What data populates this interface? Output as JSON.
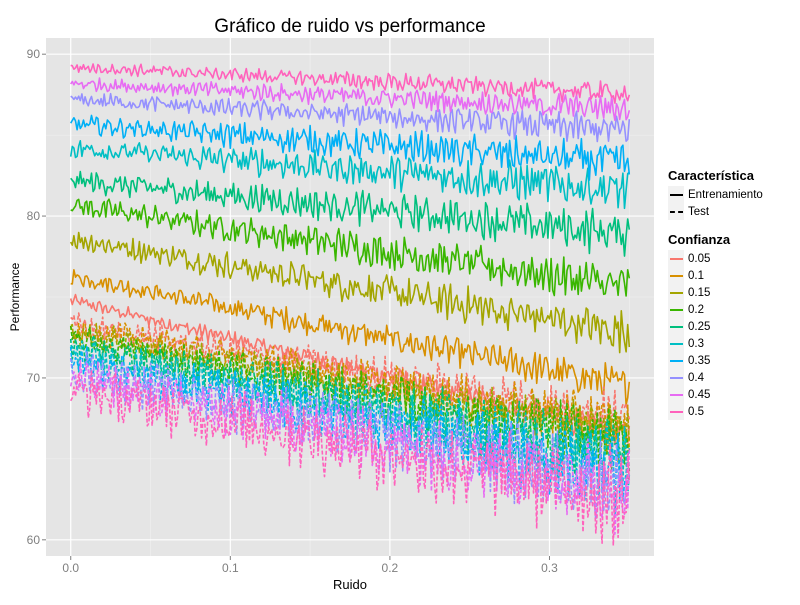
{
  "chart_data": {
    "type": "line",
    "title": "Gráfico de ruido vs performance",
    "xlabel": "Ruido",
    "ylabel": "Performance",
    "xlim": [
      -0.0155,
      0.3655
    ],
    "ylim": [
      59,
      91
    ],
    "x_ticks": [
      "0.0",
      "0.1",
      "0.2",
      "0.3"
    ],
    "x_tick_values": [
      0.0,
      0.1,
      0.2,
      0.3
    ],
    "y_ticks": [
      "60",
      "70",
      "80",
      "90"
    ],
    "y_tick_values": [
      60,
      70,
      80,
      90
    ],
    "grid": true,
    "legend_position": "right",
    "x_range": [
      0.0,
      0.35
    ],
    "line_style_legend": {
      "title": "Característica",
      "items": [
        {
          "label": "Entrenamiento",
          "style": "solid"
        },
        {
          "label": "Test",
          "style": "dashed"
        }
      ]
    },
    "color_legend": {
      "title": "Confianza",
      "items": [
        {
          "label": "0.05",
          "color": "#F8766D"
        },
        {
          "label": "0.1",
          "color": "#D89000"
        },
        {
          "label": "0.15",
          "color": "#A3A500"
        },
        {
          "label": "0.2",
          "color": "#39B600"
        },
        {
          "label": "0.25",
          "color": "#00BF7D"
        },
        {
          "label": "0.3",
          "color": "#00BFC4"
        },
        {
          "label": "0.35",
          "color": "#00B0F6"
        },
        {
          "label": "0.4",
          "color": "#9590FF"
        },
        {
          "label": "0.45",
          "color": "#E76BF3"
        },
        {
          "label": "0.5",
          "color": "#FF62BC"
        }
      ]
    },
    "series": [
      {
        "name": "0.05",
        "feature": "Entrenamiento",
        "style": "solid",
        "x": [
          0.0,
          0.35
        ],
        "y": [
          74.8,
          66.5
        ],
        "noise": 0.3
      },
      {
        "name": "0.1",
        "feature": "Entrenamiento",
        "style": "solid",
        "x": [
          0.0,
          0.35
        ],
        "y": [
          76.3,
          69.5
        ],
        "noise": 0.4
      },
      {
        "name": "0.15",
        "feature": "Entrenamiento",
        "style": "solid",
        "x": [
          0.0,
          0.35
        ],
        "y": [
          78.6,
          72.8
        ],
        "noise": 0.5
      },
      {
        "name": "0.2",
        "feature": "Entrenamiento",
        "style": "solid",
        "x": [
          0.0,
          0.35
        ],
        "y": [
          80.7,
          75.6
        ],
        "noise": 0.5
      },
      {
        "name": "0.25",
        "feature": "Entrenamiento",
        "style": "solid",
        "x": [
          0.0,
          0.35
        ],
        "y": [
          82.2,
          78.9
        ],
        "noise": 0.5
      },
      {
        "name": "0.3",
        "feature": "Entrenamiento",
        "style": "solid",
        "x": [
          0.0,
          0.35
        ],
        "y": [
          84.2,
          81.6
        ],
        "noise": 0.5
      },
      {
        "name": "0.35",
        "feature": "Entrenamiento",
        "style": "solid",
        "x": [
          0.0,
          0.35
        ],
        "y": [
          85.7,
          83.3
        ],
        "noise": 0.45
      },
      {
        "name": "0.4",
        "feature": "Entrenamiento",
        "style": "solid",
        "x": [
          0.0,
          0.35
        ],
        "y": [
          87.2,
          85.3
        ],
        "noise": 0.35
      },
      {
        "name": "0.45",
        "feature": "Entrenamiento",
        "style": "solid",
        "x": [
          0.0,
          0.35
        ],
        "y": [
          88.2,
          86.6
        ],
        "noise": 0.3
      },
      {
        "name": "0.5",
        "feature": "Entrenamiento",
        "style": "solid",
        "x": [
          0.0,
          0.35
        ],
        "y": [
          89.2,
          87.6
        ],
        "noise": 0.25
      },
      {
        "name": "0.05",
        "feature": "Test",
        "style": "dashed",
        "x": [
          0.0,
          0.35
        ],
        "y": [
          73.3,
          67.5
        ],
        "noise": 0.6
      },
      {
        "name": "0.1",
        "feature": "Test",
        "style": "dashed",
        "x": [
          0.0,
          0.35
        ],
        "y": [
          73.1,
          67.0
        ],
        "noise": 0.6
      },
      {
        "name": "0.15",
        "feature": "Test",
        "style": "dashed",
        "x": [
          0.0,
          0.35
        ],
        "y": [
          72.8,
          66.5
        ],
        "noise": 0.6
      },
      {
        "name": "0.2",
        "feature": "Test",
        "style": "dashed",
        "x": [
          0.0,
          0.35
        ],
        "y": [
          72.4,
          66.0
        ],
        "noise": 0.7
      },
      {
        "name": "0.25",
        "feature": "Test",
        "style": "dashed",
        "x": [
          0.0,
          0.35
        ],
        "y": [
          72.0,
          65.3
        ],
        "noise": 0.8
      },
      {
        "name": "0.3",
        "feature": "Test",
        "style": "dashed",
        "x": [
          0.0,
          0.35
        ],
        "y": [
          71.5,
          64.6
        ],
        "noise": 0.8
      },
      {
        "name": "0.35",
        "feature": "Test",
        "style": "dashed",
        "x": [
          0.0,
          0.35
        ],
        "y": [
          71.0,
          64.0
        ],
        "noise": 0.9
      },
      {
        "name": "0.4",
        "feature": "Test",
        "style": "dashed",
        "x": [
          0.0,
          0.35
        ],
        "y": [
          70.5,
          63.4
        ],
        "noise": 1.0
      },
      {
        "name": "0.45",
        "feature": "Test",
        "style": "dashed",
        "x": [
          0.0,
          0.35
        ],
        "y": [
          70.0,
          63.0
        ],
        "noise": 1.0
      },
      {
        "name": "0.5",
        "feature": "Test",
        "style": "dashed",
        "x": [
          0.0,
          0.35
        ],
        "y": [
          69.3,
          62.5
        ],
        "noise": 1.1
      }
    ]
  }
}
